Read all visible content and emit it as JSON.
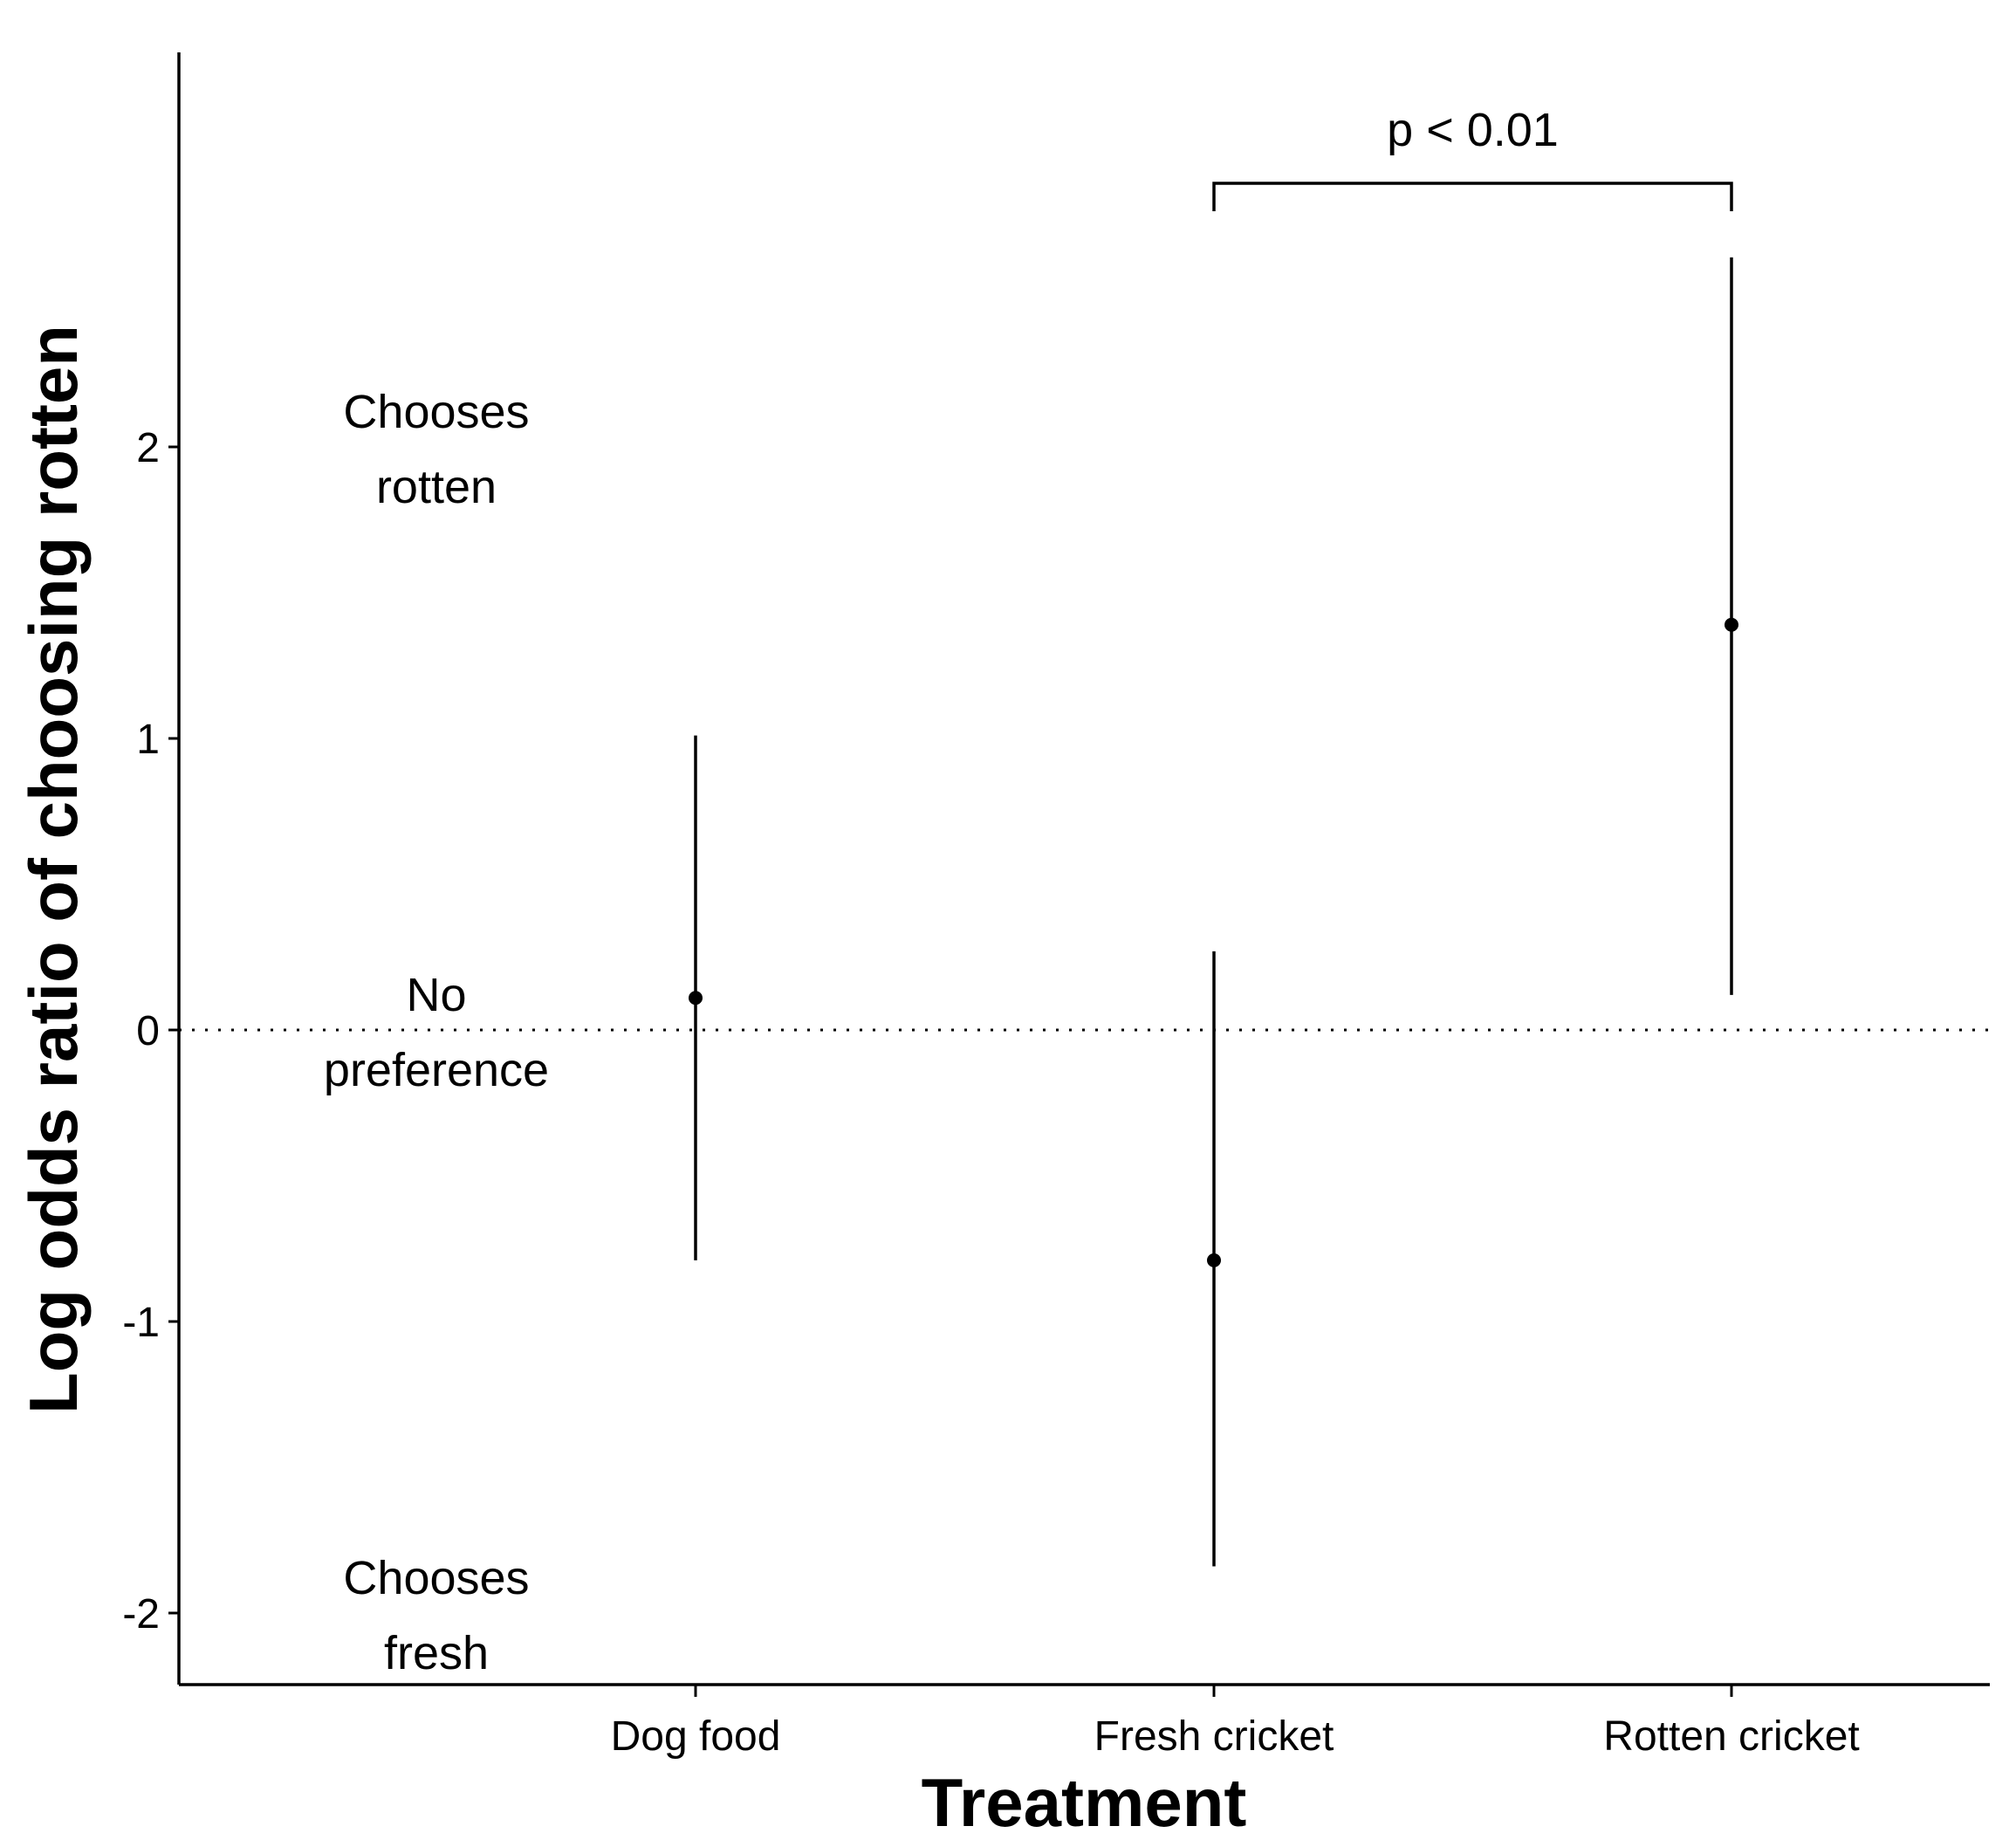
{
  "chart_data": {
    "type": "scatter",
    "xlabel": "Treatment",
    "ylabel": "Log odds ratio of choosing rotten",
    "categories": [
      "Dog food",
      "Fresh cricket",
      "Rotten cricket"
    ],
    "points": [
      {
        "category": "Dog food",
        "estimate": 0.11,
        "lower": -0.79,
        "upper": 1.01
      },
      {
        "category": "Fresh cricket",
        "estimate": -0.79,
        "lower": -1.84,
        "upper": 0.27
      },
      {
        "category": "Rotten cricket",
        "estimate": 1.39,
        "lower": 0.12,
        "upper": 2.65
      }
    ],
    "ylim": [
      -2.25,
      3.35
    ],
    "yticks": [
      -2,
      -1,
      0,
      1,
      2
    ],
    "ytick_labels": [
      "-2",
      "-1",
      "0",
      "1",
      "2"
    ],
    "reference_line": {
      "y": 0,
      "style": "dotted"
    },
    "annotations": [
      {
        "lines": [
          "Chooses",
          "rotten"
        ],
        "y": 2
      },
      {
        "lines": [
          "No",
          "preference"
        ],
        "y": 0
      },
      {
        "lines": [
          "Chooses",
          "fresh"
        ],
        "y": -2
      }
    ],
    "significance": {
      "from": "Fresh cricket",
      "to": "Rotten cricket",
      "label": "p < 0.01"
    },
    "grid": false,
    "legend": "none"
  }
}
